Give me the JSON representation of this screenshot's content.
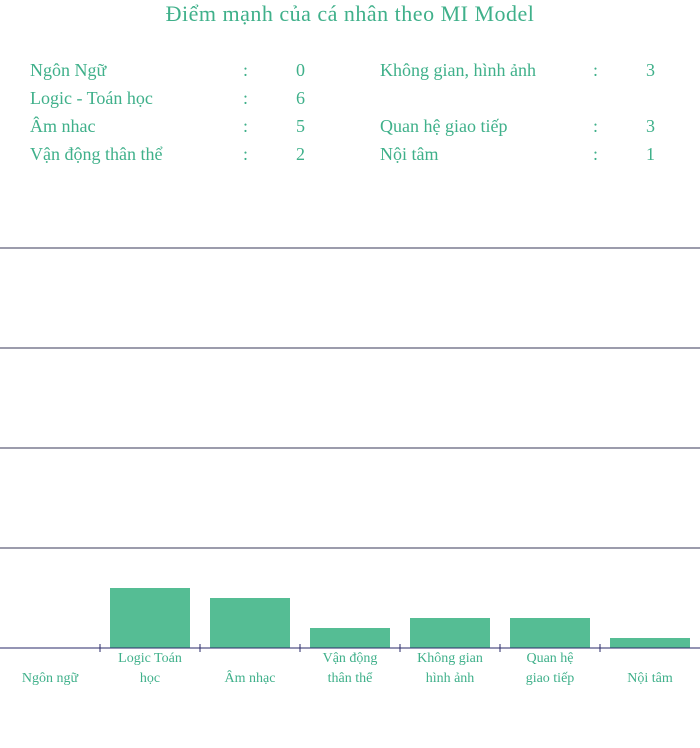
{
  "title": "Điểm mạnh của cá nhân theo MI Model",
  "scores": [
    {
      "label": "Ngôn Ngữ",
      "value": "0"
    },
    {
      "label": "Logic - Toán học",
      "value": "6"
    },
    {
      "label": "Âm nhac",
      "value": "5"
    },
    {
      "label": "Vận động thân thể",
      "value": "2"
    },
    {
      "label": "Không gian, hình ảnh",
      "value": "3"
    },
    {
      "label": "Quan hệ giao tiếp",
      "value": "3"
    },
    {
      "label": "Nội tâm",
      "value": "1"
    }
  ],
  "separator": ":",
  "colors": {
    "accent": "#3fb08a",
    "bar": "#55bd94",
    "grid": "#3a3a5a"
  },
  "chart_data": {
    "type": "bar",
    "categories": [
      [
        "Ngôn ngữ"
      ],
      [
        "Logic Toán",
        "học"
      ],
      [
        "Âm nhạc"
      ],
      [
        "Vận động",
        "thân thể"
      ],
      [
        "Không gian",
        "hình ảnh"
      ],
      [
        "Quan hệ",
        "giao tiếp"
      ],
      [
        "Nội tâm"
      ]
    ],
    "values": [
      0,
      6,
      5,
      2,
      3,
      3,
      1
    ],
    "ylim": [
      0,
      40
    ],
    "grid": true,
    "legend": "none"
  }
}
